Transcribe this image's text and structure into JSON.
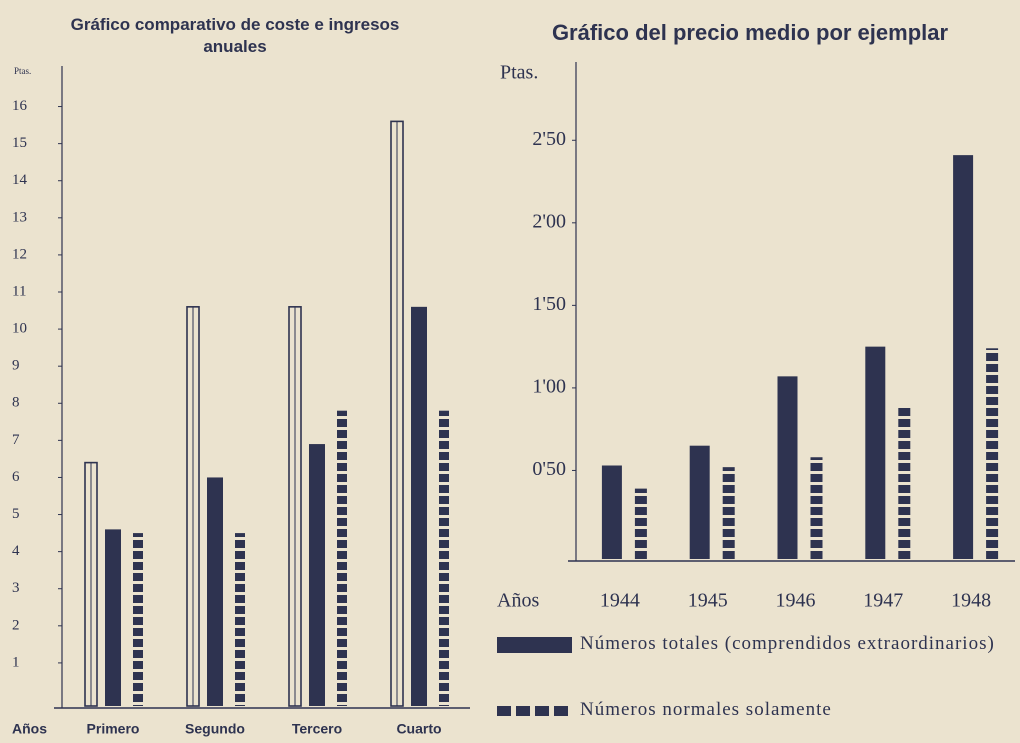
{
  "chart_data": [
    {
      "type": "bar",
      "title": "Gráfico comparativo de coste e ingresos anuales",
      "ylabel": "Ptas.",
      "xlabel": "Años",
      "categories": [
        "Primero",
        "Segundo",
        "Tercero",
        "Cuarto"
      ],
      "series": [
        {
          "color": "#2e3350",
          "style": "outline",
          "values": [
            6.4,
            10.6,
            10.6,
            15.6
          ]
        },
        {
          "color": "#2e3350",
          "style": "solid",
          "values": [
            4.6,
            6.0,
            6.9,
            10.6
          ]
        },
        {
          "color": "#2e3350",
          "style": "dotted",
          "values": [
            4.5,
            4.5,
            7.8,
            7.8
          ]
        }
      ],
      "ylim": [
        0,
        16.5
      ],
      "yticks": [
        1,
        2,
        3,
        4,
        5,
        6,
        7,
        8,
        9,
        10,
        11,
        12,
        13,
        14,
        15,
        16
      ]
    },
    {
      "type": "bar",
      "title": "Gráfico del precio medio por ejemplar",
      "ylabel": "Ptas.",
      "xlabel": "Años",
      "categories": [
        "1944",
        "1945",
        "1946",
        "1947",
        "1948"
      ],
      "series": [
        {
          "name": "Números totales (comprendidos extraordinarios)",
          "color": "#2e3350",
          "style": "solid",
          "values": [
            0.53,
            0.65,
            1.07,
            1.25,
            2.41
          ]
        },
        {
          "name": "Números normales solamente",
          "color": "#2e3350",
          "style": "dotted",
          "values": [
            0.39,
            0.52,
            0.58,
            0.88,
            1.24
          ]
        }
      ],
      "ylim": [
        0,
        2.75
      ],
      "yticks": [
        {
          "value": 0.5,
          "label": "0'50"
        },
        {
          "value": 1.0,
          "label": "1'00"
        },
        {
          "value": 1.5,
          "label": "1'50"
        },
        {
          "value": 2.0,
          "label": "2'00"
        },
        {
          "value": 2.5,
          "label": "2'50"
        }
      ]
    }
  ]
}
